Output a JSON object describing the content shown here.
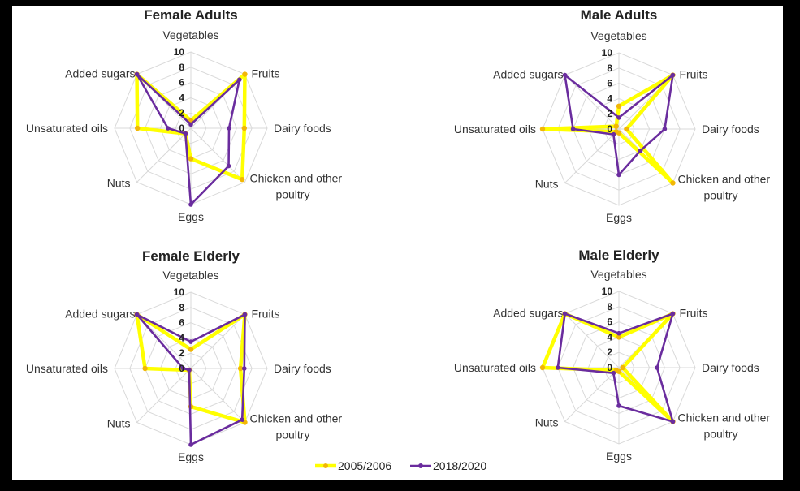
{
  "chart_data": [
    {
      "type": "radar",
      "title": "Female Adults",
      "categories": [
        "Vegetables",
        "Fruits",
        "Dairy foods",
        "Chicken and other poultry",
        "Eggs",
        "Nuts",
        "Unsaturated oils",
        "Added sugars"
      ],
      "range": [
        0,
        10
      ],
      "ticks": [
        "0",
        "2",
        "4",
        "6",
        "8",
        "10"
      ],
      "series": [
        {
          "name": "2005/2006",
          "values": [
            1,
            10,
            7,
            9.5,
            4,
            1,
            7,
            10
          ]
        },
        {
          "name": "2018/2020",
          "values": [
            0.5,
            9,
            5,
            7,
            10,
            1,
            3,
            10
          ]
        }
      ]
    },
    {
      "type": "radar",
      "title": "Male Adults",
      "categories": [
        "Vegetables",
        "Fruits",
        "Dairy foods",
        "Chicken and other poultry",
        "Eggs",
        "Nuts",
        "Unsaturated oils",
        "Added sugars"
      ],
      "range": [
        0,
        10
      ],
      "ticks": [
        "0",
        "2",
        "4",
        "6",
        "8",
        "10"
      ],
      "series": [
        {
          "name": "2005/2006",
          "values": [
            3,
            10,
            1,
            10,
            0.5,
            0.5,
            10,
            0.5
          ]
        },
        {
          "name": "2018/2020",
          "values": [
            1.5,
            10,
            6,
            4,
            6,
            1,
            6,
            10
          ]
        }
      ]
    },
    {
      "type": "radar",
      "title": "Female Elderly",
      "categories": [
        "Vegetables",
        "Fruits",
        "Dairy foods",
        "Chicken and other poultry",
        "Eggs",
        "Nuts",
        "Unsaturated oils",
        "Added sugars"
      ],
      "range": [
        0,
        10
      ],
      "ticks": [
        "0",
        "2",
        "4",
        "6",
        "8",
        "10"
      ],
      "series": [
        {
          "name": "2005/2006",
          "values": [
            2.5,
            10,
            6.5,
            10,
            5,
            0.3,
            6,
            10
          ]
        },
        {
          "name": "2018/2020",
          "values": [
            3.5,
            10,
            7,
            9.5,
            10,
            0.3,
            1,
            10
          ]
        }
      ]
    },
    {
      "type": "radar",
      "title": "Male Elderly",
      "categories": [
        "Vegetables",
        "Fruits",
        "Dairy foods",
        "Chicken and other poultry",
        "Eggs",
        "Nuts",
        "Unsaturated oils",
        "Added sugars"
      ],
      "range": [
        0,
        10
      ],
      "ticks": [
        "0",
        "2",
        "4",
        "6",
        "8",
        "10"
      ],
      "series": [
        {
          "name": "2005/2006",
          "values": [
            4,
            10,
            0.5,
            10,
            0.5,
            0.5,
            10,
            10
          ]
        },
        {
          "name": "2018/2020",
          "values": [
            4.5,
            10,
            5,
            10,
            5,
            1,
            8,
            10
          ]
        }
      ]
    }
  ],
  "legend": [
    {
      "name": "2005/2006",
      "color": "#ffff00"
    },
    {
      "name": "2018/2020",
      "color": "#6a2c9e"
    }
  ],
  "colors": {
    "series_2005": "#ffff00",
    "series_2018": "#6a2c9e",
    "grid": "#d9d9d9"
  }
}
